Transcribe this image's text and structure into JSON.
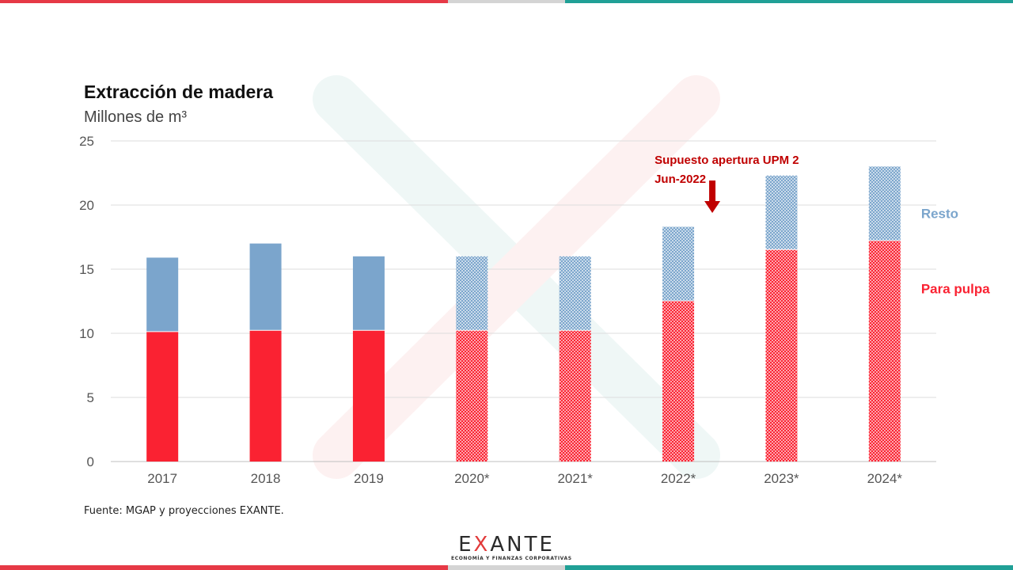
{
  "colors": {
    "pulpa": "#fa2232",
    "resto": "#7ba5cc",
    "annotation": "#c00000",
    "watermark_green": "#2a9d8f",
    "watermark_red": "#ef4444"
  },
  "chart_data": {
    "type": "bar",
    "stacked": true,
    "title": "Extracción de madera",
    "subtitle": "Millones de m³",
    "categories": [
      "2017",
      "2018",
      "2019",
      "2020*",
      "2021*",
      "2022*",
      "2023*",
      "2024*"
    ],
    "projected_from_index": 3,
    "series": [
      {
        "name": "Para pulpa",
        "values": [
          10.1,
          10.2,
          10.2,
          10.2,
          10.2,
          12.5,
          16.5,
          17.2
        ]
      },
      {
        "name": "Resto",
        "values": [
          5.8,
          6.8,
          5.8,
          5.8,
          5.8,
          5.8,
          5.8,
          5.8
        ]
      }
    ],
    "ylim": [
      0,
      25
    ],
    "yticks": [
      0,
      5,
      10,
      15,
      20,
      25
    ],
    "grid": true,
    "legend": "right",
    "annotation": {
      "lines": [
        "Supuesto apertura UPM 2",
        "Jun-2022"
      ],
      "target_category": "2022*"
    }
  },
  "source": "Fuente: MGAP y proyecciones EXANTE.",
  "logo": {
    "word_before": "E",
    "word_x": "X",
    "word_after": "ANTE",
    "tagline": "ECONOMÍA Y FINANZAS CORPORATIVAS"
  }
}
